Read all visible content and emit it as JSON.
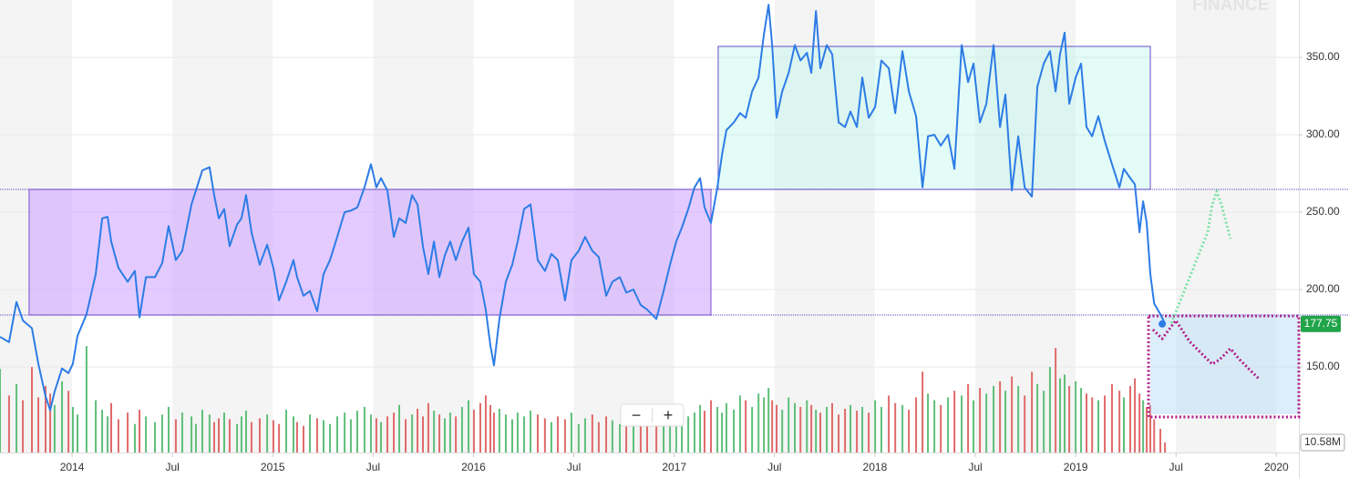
{
  "chart_data": {
    "type": "line",
    "watermark": "FINANCE",
    "zoom_controls": [
      "−",
      "+"
    ],
    "x": [
      2013.641,
      2013.686,
      2013.723,
      2013.755,
      2013.8,
      2013.832,
      2013.868,
      2013.891,
      2013.913,
      2013.95,
      2013.982,
      2014.004,
      2014.027,
      2014.072,
      2014.118,
      2014.15,
      2014.177,
      2014.195,
      2014.231,
      2014.277,
      2014.313,
      2014.336,
      2014.368,
      2014.413,
      2014.449,
      2014.481,
      2014.517,
      2014.549,
      2014.595,
      2014.617,
      2014.649,
      2014.685,
      2014.708,
      2014.731,
      2014.758,
      2014.785,
      2014.822,
      2014.844,
      2014.867,
      2014.894,
      2014.935,
      2014.972,
      2015.003,
      2015.031,
      2015.067,
      2015.103,
      2015.121,
      2015.153,
      2015.185,
      2015.221,
      2015.253,
      2015.285,
      2015.321,
      2015.358,
      2015.389,
      2015.421,
      2015.457,
      2015.489,
      2015.516,
      2015.539,
      2015.571,
      2015.603,
      2015.63,
      2015.662,
      2015.694,
      2015.721,
      2015.748,
      2015.775,
      2015.803,
      2015.83,
      2015.857,
      2015.884,
      2015.912,
      2015.943,
      2015.975,
      2016.002,
      2016.034,
      2016.061,
      2016.084,
      2016.102,
      2016.129,
      2016.161,
      2016.193,
      2016.22,
      2016.252,
      2016.284,
      2016.32,
      2016.356,
      2016.388,
      2016.42,
      2016.456,
      2016.488,
      2016.524,
      2016.556,
      2016.592,
      2016.624,
      2016.661,
      2016.692,
      2016.729,
      2016.761,
      2016.797,
      2016.833,
      2016.865,
      2016.911,
      2016.947,
      2016.979,
      2017.01,
      2017.038,
      2017.07,
      2017.101,
      2017.129,
      2017.151,
      2017.183,
      2017.215,
      2017.238,
      2017.26,
      2017.297,
      2017.328,
      2017.356,
      2017.388,
      2017.42,
      2017.447,
      2017.47,
      2017.488,
      2017.51,
      2017.538,
      2017.57,
      2017.601,
      2017.629,
      2017.661,
      2017.683,
      2017.706,
      2017.728,
      2017.76,
      2017.787,
      2017.819,
      2017.851,
      2017.878,
      2017.91,
      2017.937,
      2017.969,
      2018.001,
      2018.032,
      2018.069,
      2018.101,
      2018.137,
      2018.169,
      2018.205,
      2018.237,
      2018.264,
      2018.296,
      2018.328,
      2018.364,
      2018.396,
      2018.432,
      2018.464,
      2018.491,
      2018.523,
      2018.555,
      2018.591,
      2018.623,
      2018.65,
      2018.682,
      2018.714,
      2018.746,
      2018.782,
      2018.809,
      2018.841,
      2018.872,
      2018.9,
      2018.922,
      2018.945,
      2018.968,
      2019.0,
      2019.027,
      2019.054,
      2019.082,
      2019.113,
      2019.145,
      2019.181,
      2019.218,
      2019.24,
      2019.272,
      2019.295,
      2019.318,
      2019.336,
      2019.354,
      2019.372,
      2019.391,
      2019.422,
      2019.445
    ],
    "series": [
      {
        "color": "#2d7ce6",
        "values": [
          169.4,
          166,
          192,
          180,
          175,
          152,
          131,
          122,
          134,
          149,
          146,
          152,
          170,
          184,
          210,
          246,
          247,
          231,
          214,
          205,
          212,
          182,
          208,
          208,
          217,
          241,
          219,
          225,
          255,
          264,
          277,
          279,
          261,
          246,
          252,
          228,
          242,
          246,
          261,
          237,
          216,
          229,
          214,
          193,
          205,
          219,
          208,
          196,
          199,
          186,
          210,
          219,
          234,
          250,
          251,
          253,
          266,
          281,
          266,
          272,
          264,
          234,
          246,
          243,
          261,
          255,
          228,
          210,
          231,
          208,
          222,
          231,
          219,
          231,
          240,
          210,
          205,
          187,
          164,
          151,
          181,
          205,
          216,
          231,
          252,
          255,
          219,
          212,
          223,
          219,
          193,
          219,
          225,
          234,
          225,
          221,
          196,
          205,
          208,
          198,
          200,
          190,
          187,
          181,
          199,
          216,
          231,
          240,
          252,
          266,
          272,
          253,
          243,
          266,
          287,
          303,
          308,
          314,
          311,
          328,
          337,
          365,
          384,
          358,
          311,
          328,
          340,
          358,
          348,
          353,
          340,
          380,
          343,
          358,
          352,
          308,
          305,
          315,
          305,
          337,
          311,
          318,
          348,
          343,
          314,
          354,
          328,
          312,
          266,
          299,
          300,
          293,
          300,
          278,
          358,
          334,
          346,
          308,
          320,
          358,
          305,
          326,
          264,
          299,
          266,
          260,
          331,
          346,
          354,
          328,
          352,
          366,
          320,
          337,
          346,
          305,
          299,
          312,
          296,
          281,
          266,
          278,
          272,
          268,
          237,
          257,
          243,
          210,
          191,
          184,
          178
        ]
      }
    ],
    "volume": {
      "up_color": "#5fbf7a",
      "down_color": "#e06a6a",
      "vlim": [
        0,
        115
      ],
      "values": [
        88,
        60,
        72,
        55,
        90,
        58,
        70,
        62,
        50,
        75,
        65,
        48,
        40,
        112,
        55,
        45,
        38,
        52,
        35,
        42,
        30,
        45,
        38,
        32,
        40,
        48,
        35,
        42,
        38,
        30,
        45,
        40,
        32,
        36,
        42,
        35,
        30,
        38,
        44,
        32,
        36,
        40,
        34,
        30,
        45,
        38,
        32,
        28,
        40,
        36,
        34,
        30,
        38,
        42,
        35,
        44,
        48,
        40,
        36,
        32,
        38,
        42,
        50,
        35,
        40,
        46,
        38,
        52,
        44,
        40,
        36,
        42,
        38,
        48,
        55,
        45,
        52,
        60,
        50,
        42,
        46,
        40,
        35,
        42,
        38,
        44,
        40,
        36,
        32,
        38,
        35,
        42,
        30,
        36,
        40,
        32,
        38,
        34,
        30,
        36,
        40,
        35,
        42,
        38,
        32,
        48,
        45,
        40,
        38,
        42,
        50,
        44,
        55,
        48,
        42,
        52,
        45,
        60,
        55,
        48,
        62,
        58,
        68,
        55,
        50,
        45,
        58,
        52,
        48,
        55,
        50,
        45,
        42,
        48,
        52,
        40,
        46,
        50,
        44,
        48,
        42,
        55,
        48,
        60,
        52,
        50,
        45,
        58,
        85,
        62,
        55,
        50,
        58,
        65,
        60,
        72,
        55,
        68,
        62,
        70,
        75,
        65,
        80,
        70,
        60,
        85,
        72,
        65,
        90,
        110,
        78,
        82,
        70,
        75,
        68,
        62,
        58,
        55,
        60,
        72,
        65,
        58,
        70,
        78,
        62,
        55,
        48,
        50,
        35,
        25,
        10.58
      ]
    },
    "volume_label": "10.58M",
    "xlim": [
      2013.641,
      2020.112
    ],
    "xticks": [
      2014,
      {
        "value": 2014.5,
        "label": "Jul"
      },
      2015,
      {
        "value": 2015.5,
        "label": "Jul"
      },
      2016,
      {
        "value": 2016.5,
        "label": "Jul"
      },
      2017,
      {
        "value": 2017.5,
        "label": "Jul"
      },
      2018,
      {
        "value": 2018.5,
        "label": "Jul"
      },
      2019,
      {
        "value": 2019.5,
        "label": "Jul"
      },
      2020
    ],
    "ylim": [
      78.2,
      387.1
    ],
    "yticks": [
      {
        "value": 150,
        "label": "150.00"
      },
      {
        "value": 200,
        "label": "200.00"
      },
      {
        "value": 250,
        "label": "250.00"
      },
      {
        "value": 300,
        "label": "300.00"
      },
      {
        "value": 350,
        "label": "350.00"
      }
    ],
    "grid": true,
    "band_colors": [
      "#f4f4f4",
      "#ffffff"
    ],
    "last_price": {
      "value": 177.75,
      "label": "177.75",
      "color": "#21a44a"
    },
    "levels": [
      {
        "value": 264.7,
        "color": "#5b3fbf"
      },
      {
        "value": 183.5,
        "color": "#5b3fbf"
      }
    ],
    "zones": [
      {
        "x": [
          2013.786,
          2017.183
        ],
        "y": [
          183.5,
          264.7
        ],
        "fill": "rgba(204,160,255,0.55)",
        "stroke": "#7b4fd0",
        "dotted": false
      },
      {
        "x": [
          2017.219,
          2019.372
        ],
        "y": [
          264.7,
          357.1
        ],
        "fill": "rgba(175,245,232,0.35)",
        "stroke": "#6a4bc9",
        "dotted": false
      },
      {
        "x": [
          2019.372,
          2020.112
        ],
        "y": [
          119.4,
          183.0
        ],
        "fill": "rgba(185,222,245,0.5)",
        "stroke": "none",
        "dotted": false
      },
      {
        "x": [
          2019.363,
          2020.112
        ],
        "y": [
          117.6,
          182.9
        ],
        "fill": "none",
        "stroke": "#b0208a",
        "dotted": true
      }
    ],
    "projections": [
      {
        "color": "#7de3a6",
        "x": [
          2019.476,
          2019.522,
          2019.567,
          2019.612,
          2019.658,
          2019.68,
          2019.703,
          2019.726,
          2019.771
        ],
        "values": [
          178.2,
          192.9,
          207.6,
          222.4,
          237.1,
          254.7,
          263.5,
          254.7,
          232.9
        ]
      },
      {
        "color": "#b0208a",
        "x": [
          2019.385,
          2019.431,
          2019.499,
          2019.567,
          2019.635,
          2019.68,
          2019.717,
          2019.771,
          2019.817,
          2019.862,
          2019.917
        ],
        "values": [
          174.1,
          168.2,
          180.0,
          166.5,
          157.6,
          151.8,
          154.7,
          161.8,
          154.7,
          148.8,
          141.8
        ]
      }
    ]
  }
}
